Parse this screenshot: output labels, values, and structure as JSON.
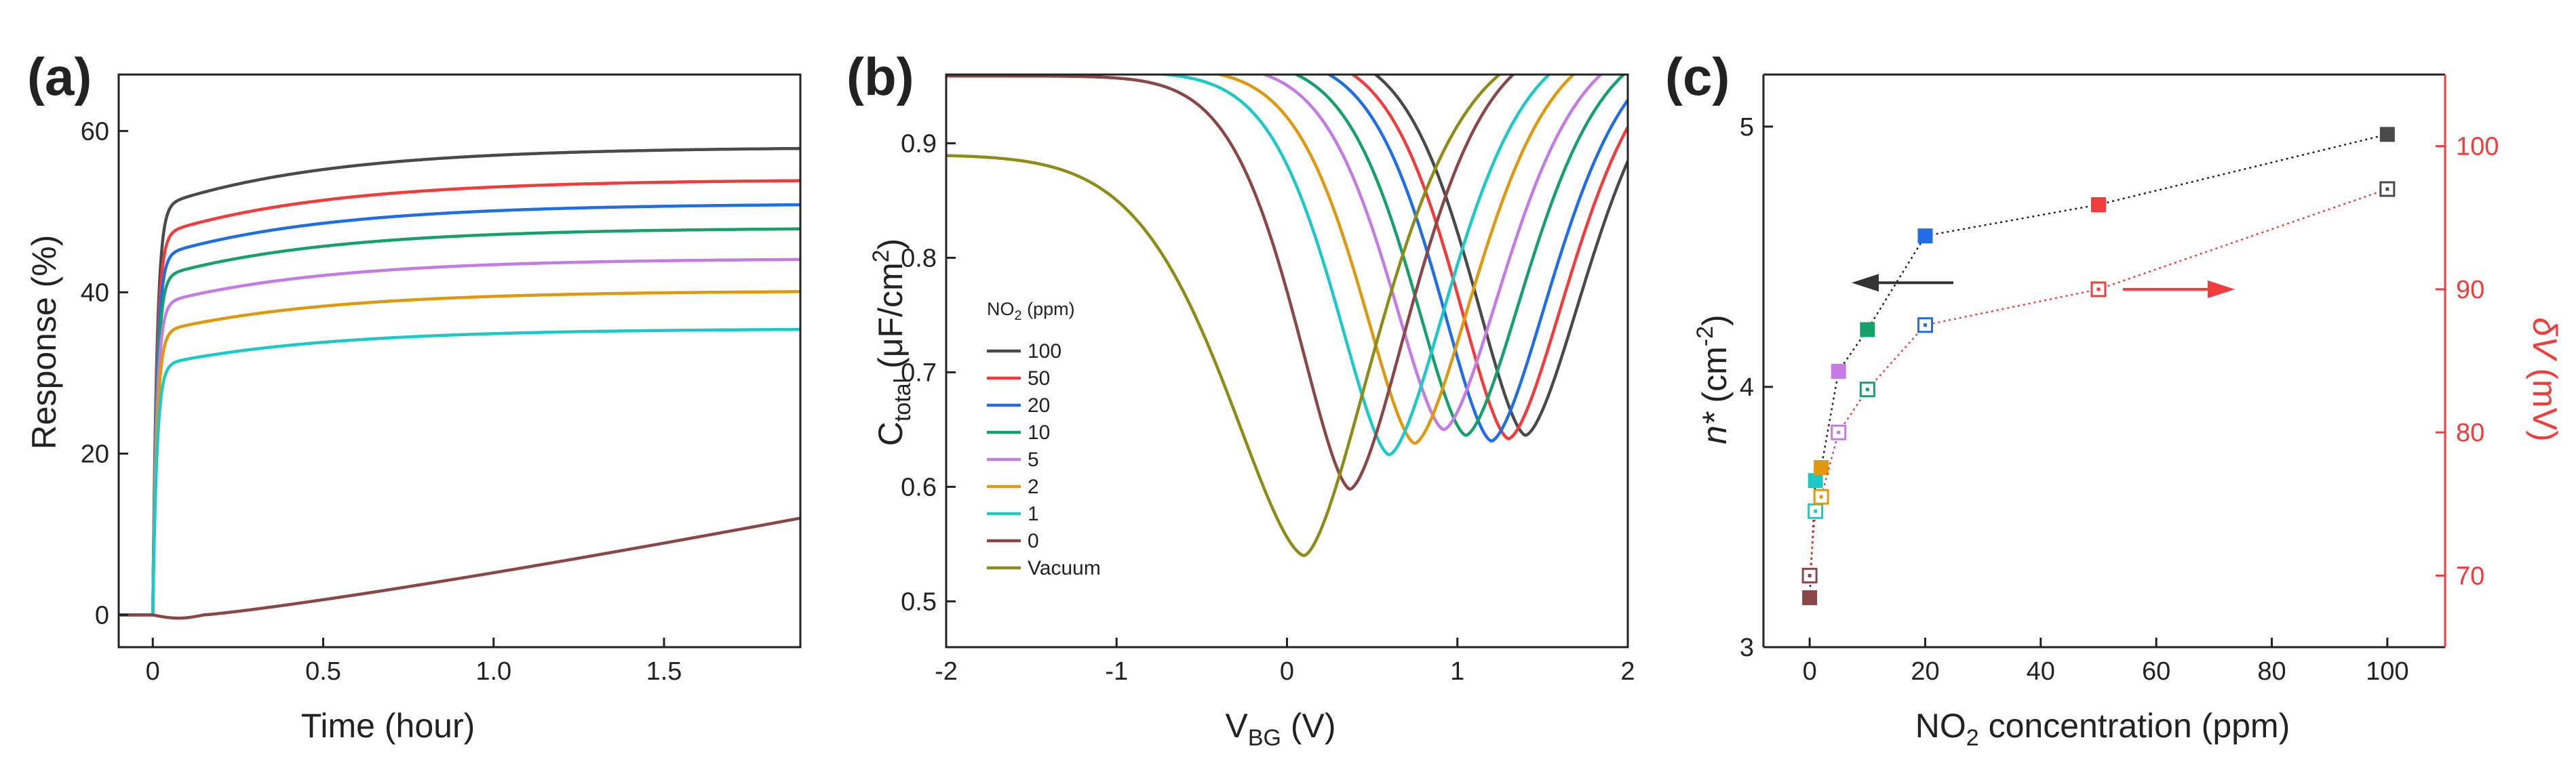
{
  "chart_data": [
    {
      "panel": "(a)",
      "type": "line",
      "xlabel": "Time (hour)",
      "ylabel": "Response (%)",
      "xlim": [
        -0.1,
        1.9
      ],
      "ylim": [
        -4,
        67
      ],
      "xticks": [
        0,
        0.5,
        1.0,
        1.5
      ],
      "xtick_labels": [
        "0",
        "0.5",
        "1.0",
        "1.5"
      ],
      "yticks": [
        0,
        20,
        40,
        60
      ],
      "ytick_labels": [
        "0",
        "20",
        "40",
        "60"
      ],
      "series": [
        {
          "name": "100",
          "color": "#4a4a4a",
          "final": 58.0,
          "tau": 0.5,
          "shape": "rise"
        },
        {
          "name": "50",
          "color": "#f23b3b",
          "final": 54.0,
          "tau": 0.5,
          "shape": "rise"
        },
        {
          "name": "20",
          "color": "#1f6ee5",
          "final": 51.0,
          "tau": 0.5,
          "shape": "rise"
        },
        {
          "name": "10",
          "color": "#16a06a",
          "final": 48.0,
          "tau": 0.5,
          "shape": "rise"
        },
        {
          "name": "5",
          "color": "#c47be6",
          "final": 44.2,
          "tau": 0.5,
          "shape": "rise"
        },
        {
          "name": "2",
          "color": "#e0980e",
          "final": 40.2,
          "tau": 0.5,
          "shape": "rise"
        },
        {
          "name": "1",
          "color": "#1cc9c9",
          "final": 35.5,
          "tau": 0.5,
          "shape": "rise"
        },
        {
          "name": "0",
          "color": "#8b4747",
          "final": 12.0,
          "tau": 0,
          "shape": "drift"
        }
      ]
    },
    {
      "panel": "(b)",
      "type": "line",
      "xlabel": "V",
      "xlabel_sub": "BG",
      "xlabel_tail": " (V)",
      "ylabel": "C",
      "ylabel_sub": "total",
      "ylabel_tail": " (μF/cm",
      "ylabel_sup": "2",
      "ylabel_end": ")",
      "xlim": [
        -2,
        2
      ],
      "ylim": [
        0.46,
        0.96
      ],
      "xticks": [
        -2,
        -1,
        0,
        1,
        2
      ],
      "xtick_labels": [
        "-2",
        "-1",
        "0",
        "1",
        "2"
      ],
      "yticks": [
        0.5,
        0.6,
        0.7,
        0.8,
        0.9
      ],
      "ytick_labels": [
        "0.5",
        "0.6",
        "0.7",
        "0.8",
        "0.9"
      ],
      "legend_title": "NO",
      "legend_title_sub": "2",
      "legend_title_tail": " (ppm)",
      "legend_position": "center-left",
      "series": [
        {
          "name": "100",
          "color": "#4a4a4a",
          "v_dirac": 1.4,
          "c_min": 0.645
        },
        {
          "name": "50",
          "color": "#f23b3b",
          "v_dirac": 1.3,
          "c_min": 0.642
        },
        {
          "name": "20",
          "color": "#1f6ee5",
          "v_dirac": 1.2,
          "c_min": 0.64
        },
        {
          "name": "10",
          "color": "#16a06a",
          "v_dirac": 1.05,
          "c_min": 0.645
        },
        {
          "name": "5",
          "color": "#c47be6",
          "v_dirac": 0.92,
          "c_min": 0.65
        },
        {
          "name": "2",
          "color": "#e0980e",
          "v_dirac": 0.75,
          "c_min": 0.638
        },
        {
          "name": "1",
          "color": "#1cc9c9",
          "v_dirac": 0.6,
          "c_min": 0.628
        },
        {
          "name": "0",
          "color": "#8b4747",
          "v_dirac": 0.37,
          "c_min": 0.598
        },
        {
          "name": "Vacuum",
          "color": "#8c8c16",
          "v_dirac": 0.1,
          "c_min": 0.54
        }
      ]
    },
    {
      "panel": "(c)",
      "type": "scatter",
      "xlabel": "NO",
      "xlabel_sub": "2",
      "xlabel_tail": " concentration (ppm)",
      "ylabel_left": "n*",
      "ylabel_left_tail": " (cm",
      "ylabel_left_sup": "-2",
      "ylabel_left_end": ")",
      "ylabel_right": "δV",
      "ylabel_right_tail": " (mV)",
      "right_axis_color": "#f23b3b",
      "xlim": [
        -8,
        110
      ],
      "ylim_left": [
        3,
        5.2
      ],
      "ylim_right": [
        65,
        105
      ],
      "xticks": [
        0,
        20,
        40,
        60,
        80,
        100
      ],
      "xtick_labels": [
        "0",
        "20",
        "40",
        "60",
        "80",
        "100"
      ],
      "yticks_left": [
        3,
        4,
        5
      ],
      "ytick_labels_left": [
        "3",
        "4",
        "5"
      ],
      "yticks_right": [
        70,
        80,
        90,
        100
      ],
      "ytick_labels_right": [
        "70",
        "80",
        "90",
        "100"
      ],
      "x": [
        0,
        1,
        2,
        5,
        10,
        20,
        50,
        100
      ],
      "point_colors": [
        "#8b4747",
        "#1cc9c9",
        "#e0980e",
        "#c47be6",
        "#16a06a",
        "#1f6ee5",
        "#f23b3b",
        "#4a4a4a"
      ],
      "series": [
        {
          "name": "n*",
          "axis": "left",
          "marker": "filled-square",
          "line_color": "#222222",
          "values": [
            3.19,
            3.64,
            3.69,
            4.06,
            4.22,
            4.58,
            4.7,
            4.97
          ]
        },
        {
          "name": "δV",
          "axis": "right",
          "marker": "open-square",
          "line_color": "#f23b3b",
          "values": [
            70.0,
            74.5,
            75.5,
            80.0,
            83.0,
            87.5,
            90.0,
            97.0
          ]
        }
      ]
    }
  ]
}
